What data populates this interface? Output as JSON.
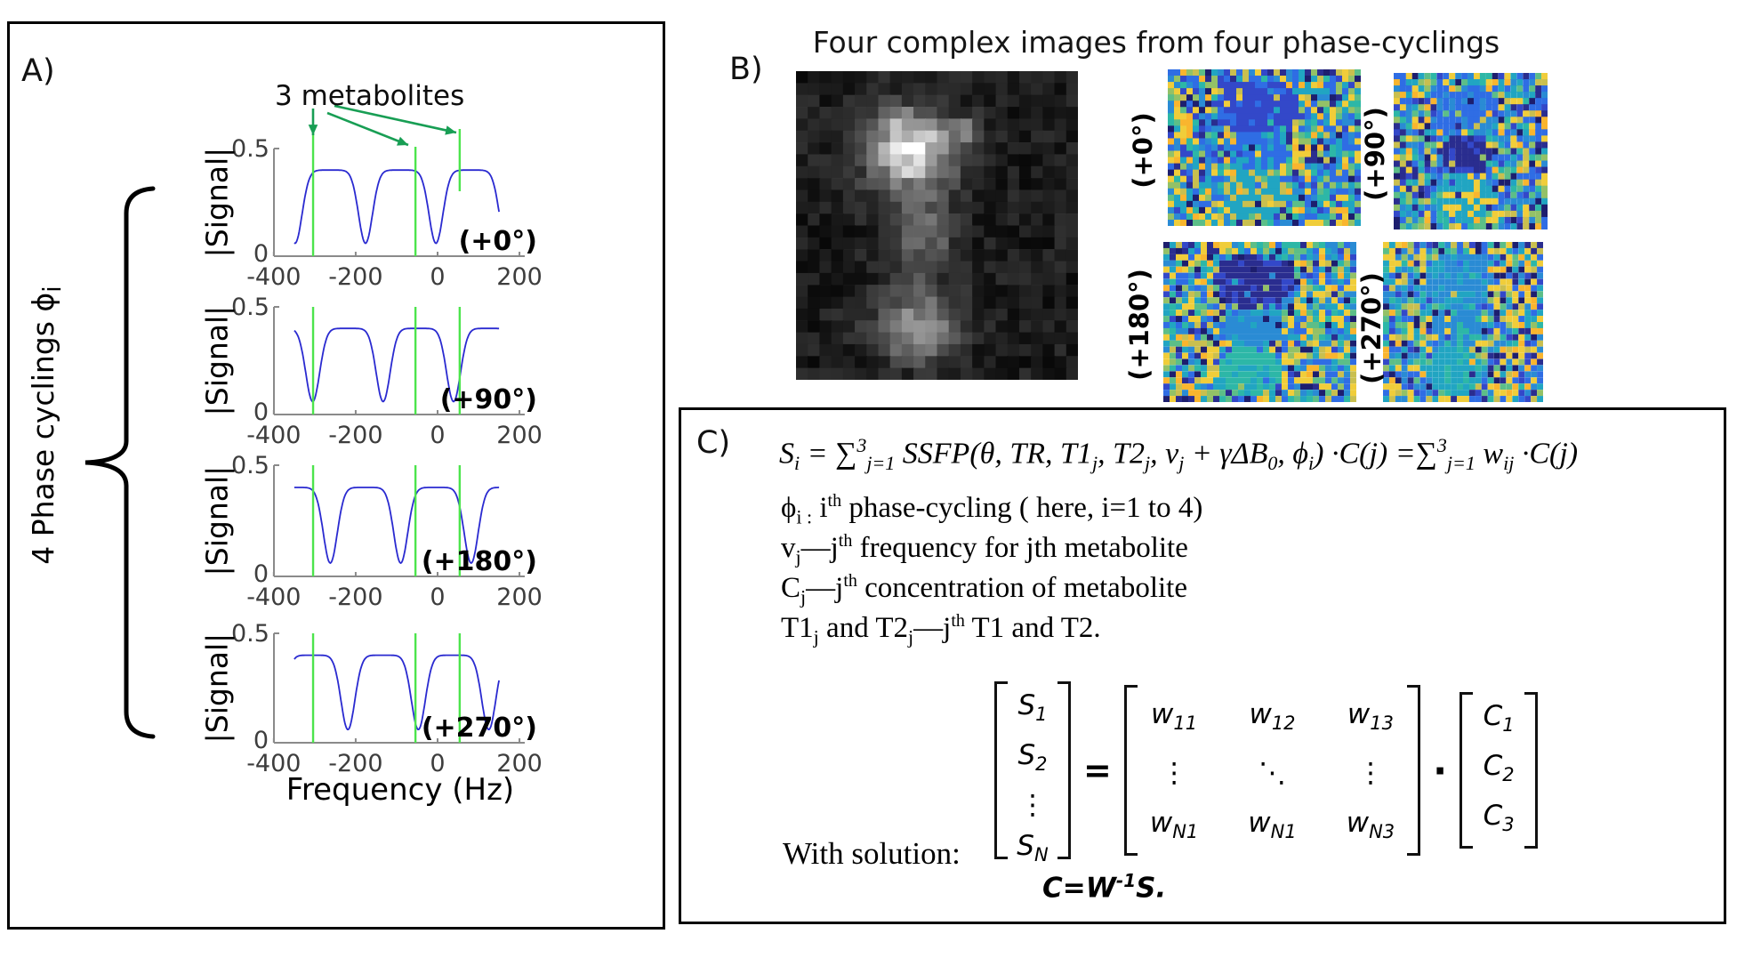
{
  "panel_a": {
    "label": "A)",
    "annotation": "3 metabolites",
    "brace_label": "4 Phase cyclings ϕ_{i}",
    "ylabel": "|Signal|",
    "xlabel": "Frequency (Hz)"
  },
  "chart_data": {
    "type": "line",
    "title": "",
    "xlabel": "Frequency (Hz)",
    "ylabel": "|Signal|",
    "x_ticks": [
      -400,
      -200,
      0,
      200
    ],
    "xlim": [
      -400,
      200
    ],
    "ylim": [
      0,
      0.5
    ],
    "y_ticks": [
      0,
      0.5
    ],
    "curve_x_range": [
      -350,
      150
    ],
    "plateau_level": 0.4,
    "dip_min_level": 0.06,
    "band_period_hz": 172,
    "metabolite_lines_hz": [
      -304,
      -54,
      54
    ],
    "plots": [
      {
        "label": "(+0°)",
        "phase_deg": 0,
        "dip_phase_hz": -4,
        "dips_hz": [
          -348,
          -176,
          -4,
          168
        ]
      },
      {
        "label": "(+90°)",
        "phase_deg": 90,
        "dip_phase_hz": 39,
        "dips_hz": [
          -305,
          -133,
          39
        ]
      },
      {
        "label": "(+180°)",
        "phase_deg": 180,
        "dip_phase_hz": 82,
        "dips_hz": [
          -262,
          -90,
          82
        ]
      },
      {
        "label": "(+270°)",
        "phase_deg": 270,
        "dip_phase_hz": 125,
        "dips_hz": [
          -219,
          -47,
          125
        ]
      }
    ]
  },
  "panel_b": {
    "label": "B)",
    "title": "Four complex images from four phase-cyclings",
    "magnitude_image": {
      "description": "grayscale magnitude image, three phantom blobs",
      "grid_cols": 24,
      "grid_rows": 26
    },
    "phase_images": [
      {
        "label": "(+0°)"
      },
      {
        "label": "(+90°)"
      },
      {
        "label": "(+180°)"
      },
      {
        "label": "(+270°)"
      }
    ],
    "colormap": [
      "#1d1e6e",
      "#2a2d8f",
      "#3348c9",
      "#2f6de4",
      "#2a8bd4",
      "#21a5c2",
      "#2db7a7",
      "#5cbe88",
      "#93c167",
      "#c9bf4f",
      "#f0cd3a",
      "#f9b52e"
    ],
    "phase_blob_palette_idx": [
      [
        [
          2,
          3
        ],
        [
          3,
          5
        ],
        [
          5,
          9
        ]
      ],
      [
        [
          3,
          4
        ],
        [
          1,
          2
        ],
        [
          5,
          10
        ]
      ],
      [
        [
          1,
          2
        ],
        [
          4,
          5
        ],
        [
          6,
          5
        ]
      ],
      [
        [
          4,
          5
        ],
        [
          4,
          6
        ],
        [
          5,
          6
        ]
      ]
    ]
  },
  "panel_c": {
    "label": "C)",
    "equation": "S_{i} = ∑^{3}_{j=1} SSFP(θ, TR, T1_{j}, T2_{j}, ν_{j} + γΔB_{0}, ϕ_{i}) ·C(j) =∑^{3}_{j=1} w_{ij} ·C(j)",
    "definitions": [
      "ϕ_{i :}  i^{th} phase-cycling ( here, i=1 to 4)",
      "v_{j}—j^{th} frequency for jth metabolite",
      "C_{j}—j^{th} concentration of metabolite",
      "T1_{j} and T2_{j}—j^{th} T1 and T2."
    ],
    "matrix": {
      "s_vector": [
        "S_{1}",
        "S_{2}",
        "⋮",
        "S_{N}"
      ],
      "equals": "=",
      "w_matrix": [
        [
          "w_{11}",
          "w_{12}",
          "w_{13}"
        ],
        [
          "⋮",
          "⋱",
          "⋮"
        ],
        [
          "w_{N1}",
          "w_{N1}",
          "w_{N3}"
        ]
      ],
      "dot": "·",
      "c_vector": [
        "C_{1}",
        "C_{2}",
        "C_{3}"
      ]
    },
    "with_solution": "With solution:",
    "solution": "C=W^{-1}S."
  },
  "colors": {
    "curve": "#2a2ad0",
    "metabolite_line": "#4ce44c",
    "arrow": "#189e54",
    "axis": "#8a8a8a",
    "tick_text": "#3d3d3d"
  }
}
